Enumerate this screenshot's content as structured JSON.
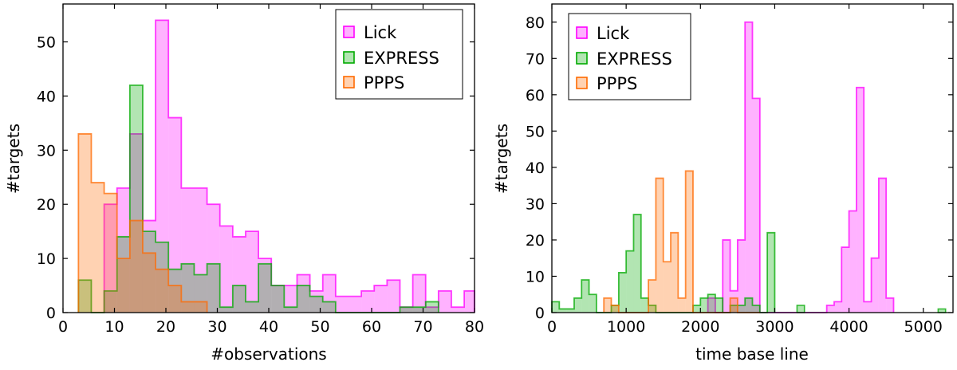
{
  "chart_data": [
    {
      "type": "area",
      "histogram": true,
      "xlabel": "#observations",
      "ylabel": "#targets",
      "xlim": [
        0,
        80
      ],
      "ylim": [
        0,
        57
      ],
      "xticks": [
        0,
        10,
        20,
        30,
        40,
        50,
        60,
        70,
        80
      ],
      "yticks": [
        0,
        10,
        20,
        30,
        40,
        50
      ],
      "grid": false,
      "legend": "top-right",
      "series": [
        {
          "name": "Lick",
          "color": "#ff00ff",
          "edges": [
            8.0,
            10.5,
            13.0,
            15.5,
            18.0,
            20.5,
            23.0,
            25.5,
            28.0,
            30.5,
            33.0,
            35.5,
            38.0,
            40.5,
            43.0,
            45.5,
            48.0,
            50.5,
            53.0,
            55.5,
            58.0,
            60.5,
            63.0,
            65.5,
            68.0,
            70.5,
            73.0,
            75.5,
            78.0,
            80.5
          ],
          "values": [
            20,
            23,
            33,
            17,
            54,
            36,
            23,
            23,
            20,
            16,
            14,
            15,
            10,
            5,
            5,
            7,
            4,
            7,
            3,
            3,
            4,
            5,
            6,
            1,
            7,
            1,
            4,
            1,
            4
          ]
        },
        {
          "name": "EXPRESS",
          "color": "#00aa00",
          "edges": [
            3.0,
            5.5,
            8.0,
            10.5,
            13.0,
            15.5,
            18.0,
            20.5,
            23.0,
            25.5,
            28.0,
            30.5,
            33.0,
            35.5,
            38.0,
            40.5,
            43.0,
            45.5,
            48.0,
            50.5,
            53.0,
            65.5,
            68.0,
            70.5,
            73.0
          ],
          "values": [
            6,
            0,
            4,
            14,
            42,
            15,
            13,
            8,
            9,
            7,
            9,
            1,
            5,
            2,
            9,
            5,
            1,
            5,
            3,
            2,
            0,
            1,
            1,
            2
          ]
        },
        {
          "name": "PPPS",
          "color": "#ff6a00",
          "edges": [
            3.0,
            5.5,
            8.0,
            10.5,
            13.0,
            15.5,
            18.0,
            20.5,
            23.0,
            25.5,
            28.0
          ],
          "values": [
            33,
            24,
            22,
            10,
            17,
            11,
            8,
            5,
            2,
            2
          ]
        }
      ]
    },
    {
      "type": "area",
      "histogram": true,
      "xlabel": "time base line",
      "ylabel": "#targets",
      "xlim": [
        0,
        5400
      ],
      "ylim": [
        0,
        85
      ],
      "xticks": [
        0,
        1000,
        2000,
        3000,
        4000,
        5000
      ],
      "yticks": [
        0,
        10,
        20,
        30,
        40,
        50,
        60,
        70,
        80
      ],
      "grid": false,
      "legend": "top-left",
      "series": [
        {
          "name": "Lick",
          "color": "#ff00ff",
          "edges": [
            2100,
            2200,
            2300,
            2400,
            2500,
            2600,
            2700,
            2800,
            2900,
            3000,
            3100,
            3200,
            3300,
            3400,
            3500,
            3600,
            3700,
            3800,
            3900,
            4000,
            4100,
            4200,
            4300,
            4400,
            4500,
            4600
          ],
          "values": [
            4,
            0,
            20,
            6,
            20,
            80,
            59,
            0,
            0,
            0,
            0,
            0,
            0,
            0,
            0,
            0,
            2,
            3,
            18,
            28,
            62,
            3,
            15,
            37,
            4
          ]
        },
        {
          "name": "EXPRESS",
          "color": "#00aa00",
          "edges": [
            0,
            100,
            200,
            300,
            400,
            500,
            600,
            700,
            800,
            900,
            1000,
            1100,
            1200,
            1300,
            1400,
            1500,
            1600,
            1700,
            1800,
            1900,
            2000,
            2100,
            2200,
            2300,
            2400,
            2500,
            2600,
            2700,
            2800,
            2900,
            3000
          ],
          "values": [
            3,
            1,
            1,
            4,
            9,
            5,
            0,
            0,
            2,
            11,
            17,
            27,
            4,
            2,
            0,
            0,
            0,
            0,
            0,
            2,
            4,
            5,
            4,
            0,
            2,
            2,
            4,
            2,
            0,
            22
          ],
          "extra_bars": [
            [
              3300,
              3400,
              2
            ],
            [
              5200,
              5300,
              1
            ]
          ]
        },
        {
          "name": "PPPS",
          "color": "#ff6a00",
          "edges": [
            700,
            800,
            900,
            1000,
            1100,
            1200,
            1300,
            1400,
            1500,
            1600,
            1700,
            1800,
            1900,
            2000,
            2100,
            2200,
            2300,
            2400,
            2500,
            2600,
            2700,
            2800
          ],
          "values": [
            4,
            2,
            0,
            0,
            0,
            0,
            9,
            37,
            14,
            22,
            4,
            39,
            0,
            0,
            0,
            0,
            0,
            4,
            0,
            0,
            0
          ]
        }
      ]
    }
  ]
}
